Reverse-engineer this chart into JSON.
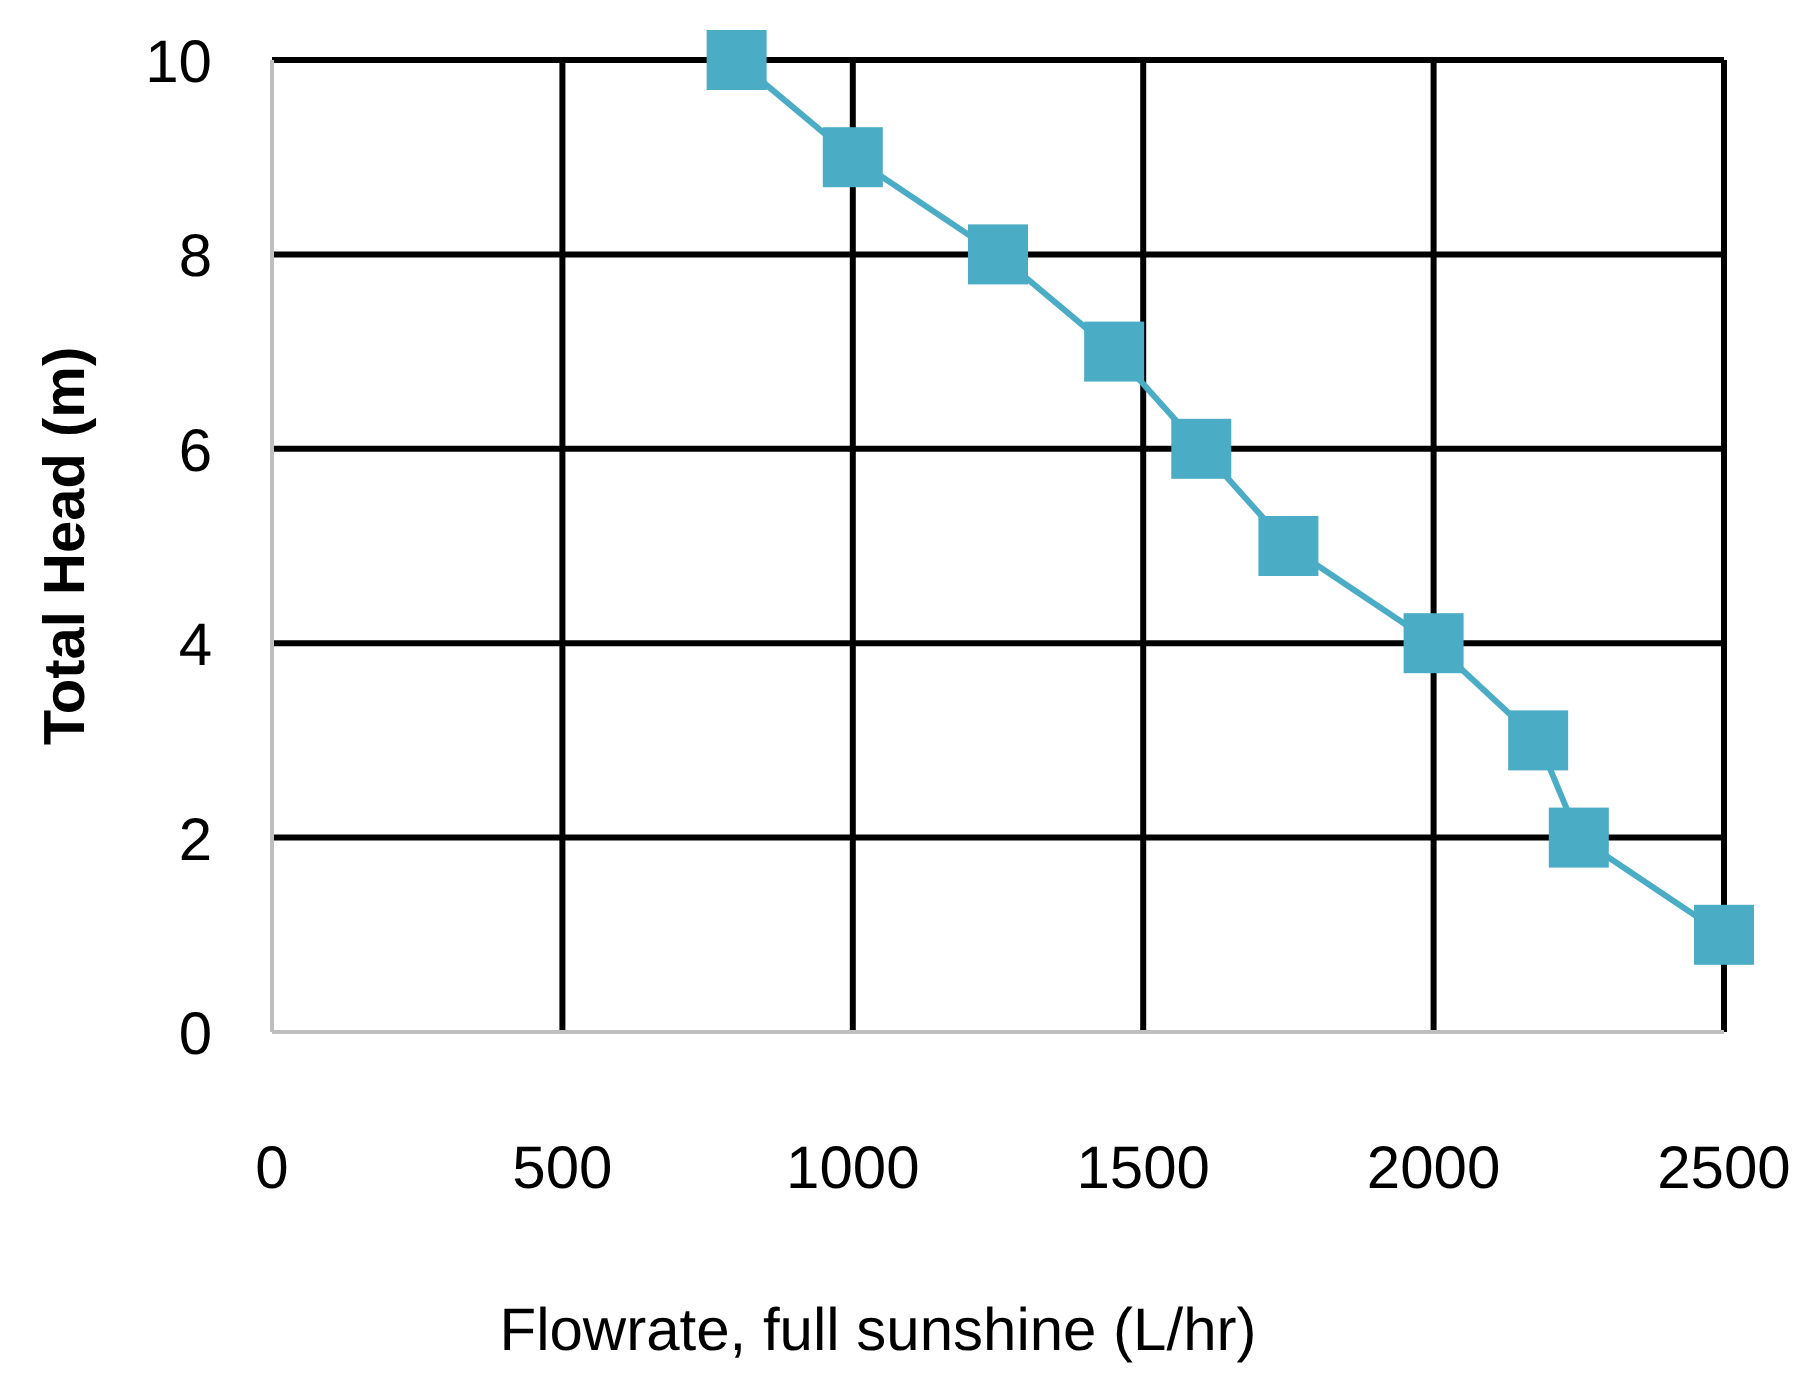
{
  "chart_data": {
    "type": "line",
    "xlabel": "Flowrate, full sunshine (L/hr)",
    "ylabel": "Total Head (m)",
    "x": [
      800,
      1000,
      1250,
      1450,
      1600,
      1750,
      2000,
      2180,
      2250,
      2500
    ],
    "series": [
      {
        "color": "#4bacc6",
        "values": [
          10,
          9,
          8,
          7,
          6,
          5,
          4,
          3,
          2,
          1
        ]
      }
    ],
    "xlim": [
      0,
      2500
    ],
    "xticks": [
      0,
      500,
      1000,
      1500,
      2000,
      2500
    ],
    "ylim": [
      0,
      10
    ],
    "yticks": [
      0,
      2,
      4,
      6,
      8,
      10
    ],
    "grid": true,
    "marker": "square",
    "line_style": "solid"
  }
}
